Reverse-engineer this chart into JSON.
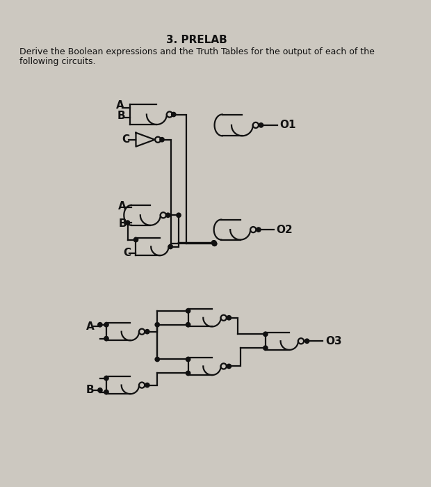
{
  "title": "3. PRELAB",
  "subtitle1": "Derive the Boolean expressions and the Truth Tables for the output of each of the",
  "subtitle2": "following circuits.",
  "bg_color": "#ccc8c0",
  "line_color": "#111111",
  "fig_width": 6.2,
  "fig_height": 7.0,
  "dpi": 100
}
